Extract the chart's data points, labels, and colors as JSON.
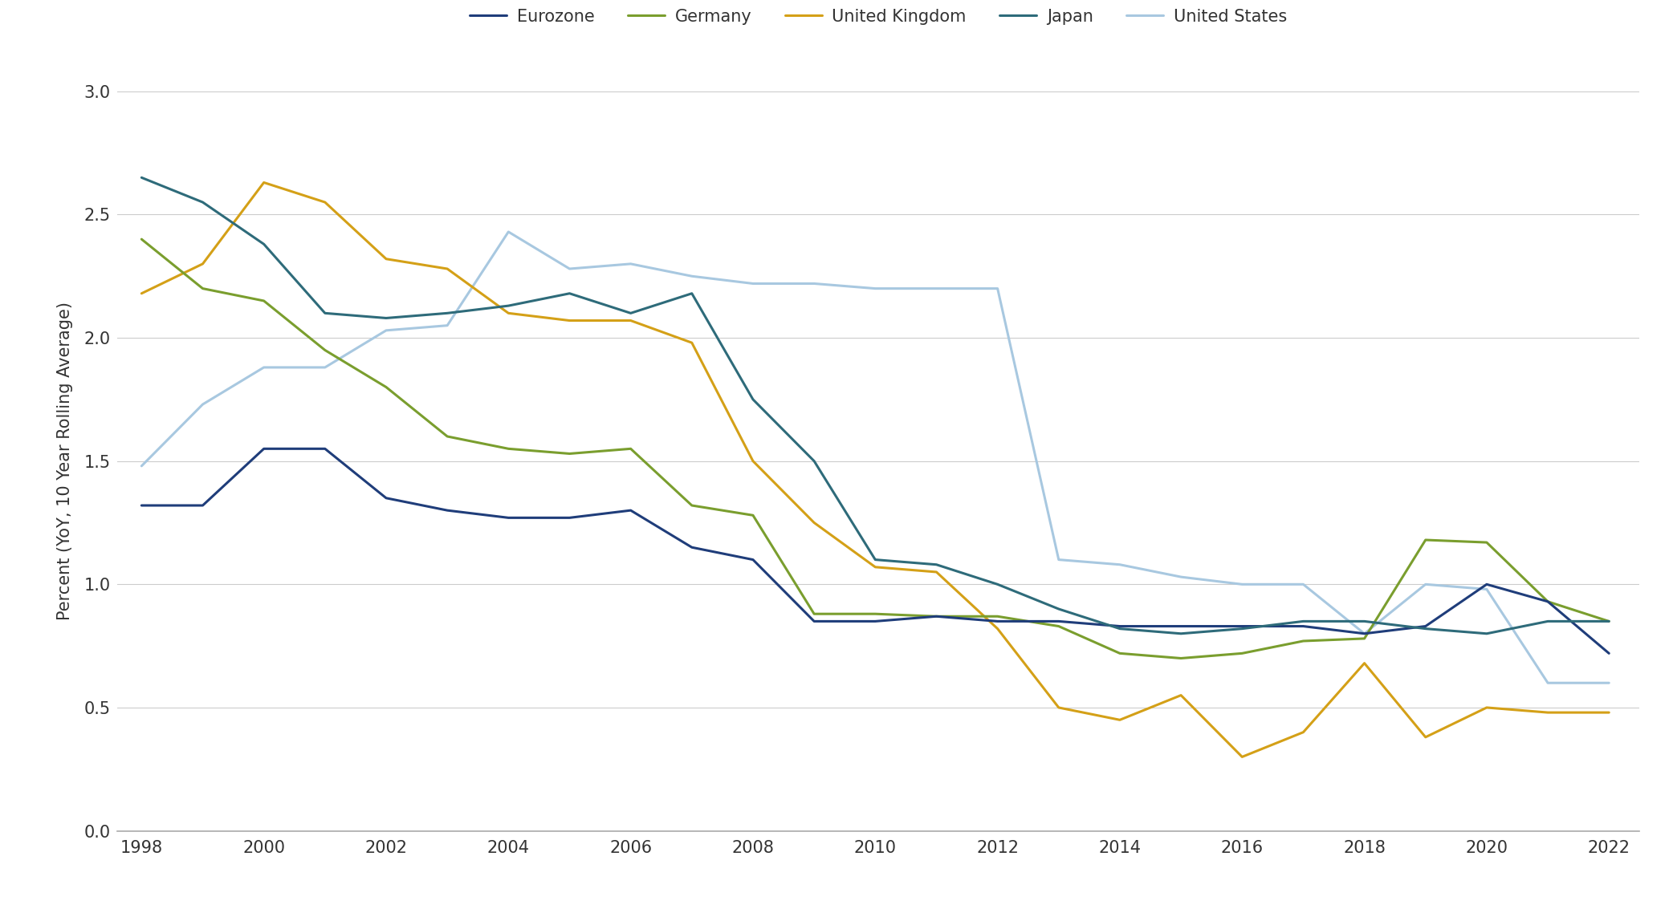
{
  "years": [
    1998,
    1999,
    2000,
    2001,
    2002,
    2003,
    2004,
    2005,
    2006,
    2007,
    2008,
    2009,
    2010,
    2011,
    2012,
    2013,
    2014,
    2015,
    2016,
    2017,
    2018,
    2019,
    2020,
    2021,
    2022
  ],
  "eurozone": [
    1.32,
    1.32,
    1.55,
    1.55,
    1.35,
    1.3,
    1.27,
    1.27,
    1.3,
    1.15,
    1.1,
    0.85,
    0.85,
    0.87,
    0.85,
    0.85,
    0.83,
    0.83,
    0.83,
    0.83,
    0.8,
    0.83,
    1.0,
    0.93,
    0.72
  ],
  "germany": [
    2.4,
    2.2,
    2.15,
    1.95,
    1.8,
    1.6,
    1.55,
    1.53,
    1.55,
    1.32,
    1.28,
    0.88,
    0.88,
    0.87,
    0.87,
    0.83,
    0.72,
    0.7,
    0.72,
    0.77,
    0.78,
    1.18,
    1.17,
    0.93,
    0.85
  ],
  "united_kingdom": [
    2.18,
    2.3,
    2.63,
    2.55,
    2.32,
    2.28,
    2.1,
    2.07,
    2.07,
    1.98,
    1.5,
    1.25,
    1.07,
    1.05,
    0.82,
    0.5,
    0.45,
    0.55,
    0.3,
    0.4,
    0.68,
    0.38,
    0.5,
    0.48,
    0.48
  ],
  "japan": [
    2.65,
    2.55,
    2.38,
    2.1,
    2.08,
    2.1,
    2.13,
    2.18,
    2.1,
    2.18,
    1.75,
    1.5,
    1.1,
    1.08,
    1.0,
    0.9,
    0.82,
    0.8,
    0.82,
    0.85,
    0.85,
    0.82,
    0.8,
    0.85,
    0.85
  ],
  "united_states": [
    1.48,
    1.73,
    1.88,
    1.88,
    2.03,
    2.05,
    2.43,
    2.28,
    2.3,
    2.25,
    2.22,
    2.22,
    2.2,
    2.2,
    2.2,
    1.1,
    1.08,
    1.03,
    1.0,
    1.0,
    0.8,
    1.0,
    0.98,
    0.6,
    0.6
  ],
  "series_labels": [
    "Eurozone",
    "Germany",
    "United Kingdom",
    "Japan",
    "United States"
  ],
  "colors": {
    "eurozone": "#1f3d7a",
    "germany": "#7a9e2e",
    "united_kingdom": "#d4a017",
    "japan": "#2e6b7a",
    "united_states": "#a8c8e0"
  },
  "ylabel": "Percent (YoY, 10 Year Rolling Average)",
  "ylim": [
    0.0,
    3.0
  ],
  "yticks": [
    0.0,
    0.5,
    1.0,
    1.5,
    2.0,
    2.5,
    3.0
  ],
  "xlim": [
    1997.6,
    2022.5
  ],
  "xticks": [
    1998,
    2000,
    2002,
    2004,
    2006,
    2008,
    2010,
    2012,
    2014,
    2016,
    2018,
    2020,
    2022
  ],
  "background_color": "#ffffff",
  "grid_color": "#cccccc",
  "line_width": 2.2
}
